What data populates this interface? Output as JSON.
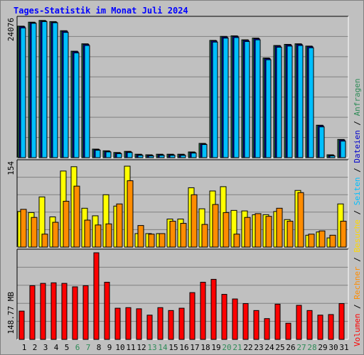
{
  "title": "Tages-Statistik im Monat Juli 2024",
  "colors": {
    "background": "#c0c0c0",
    "title": "#0000ff",
    "anfragen": "#2e8b57",
    "dateien": "#0000cd",
    "seiten": "#00bfff",
    "besuche": "#ffd700",
    "rechner": "#ff8c00",
    "volumen": "#ff0000",
    "weekend_label": "#2e8b57"
  },
  "right_legend": {
    "anfragen": "Anfragen",
    "dateien": "Dateien",
    "seiten": "Seiten",
    "besuche": "Besuche",
    "rechner": "Rechner",
    "volumen": "Volumen",
    "sep": " / "
  },
  "chart_data": [
    {
      "type": "bar",
      "ytick_label": "24076",
      "ymax": 24076,
      "categories": [
        "1",
        "2",
        "3",
        "4",
        "5",
        "6",
        "7",
        "8",
        "9",
        "10",
        "11",
        "12",
        "13",
        "14",
        "15",
        "16",
        "17",
        "18",
        "19",
        "20",
        "21",
        "22",
        "23",
        "24",
        "25",
        "26",
        "27",
        "28",
        "29",
        "30",
        "31"
      ],
      "weekend_days": [
        "6",
        "7",
        "13",
        "14",
        "20",
        "21",
        "27",
        "28"
      ],
      "series": [
        {
          "name": "Anfragen",
          "color": "#2e8b57",
          "values": [
            23100,
            23800,
            24100,
            23900,
            22300,
            18700,
            20000,
            1500,
            1200,
            900,
            1100,
            600,
            500,
            600,
            600,
            600,
            1000,
            2500,
            20600,
            21300,
            21400,
            20700,
            21000,
            17500,
            19700,
            19900,
            20000,
            19600,
            5700,
            500,
            3200
          ]
        },
        {
          "name": "Dateien",
          "color": "#0000cd",
          "values": [
            23000,
            23700,
            24000,
            23800,
            22200,
            18600,
            19900,
            1400,
            1100,
            800,
            1000,
            500,
            400,
            500,
            500,
            500,
            900,
            2400,
            20500,
            21200,
            21300,
            20600,
            20900,
            17400,
            19600,
            19800,
            19900,
            19500,
            5600,
            400,
            3100
          ]
        },
        {
          "name": "Seiten",
          "color": "#00bfff",
          "values": [
            22800,
            23600,
            23900,
            23700,
            22000,
            18400,
            19700,
            1300,
            1000,
            700,
            900,
            400,
            300,
            400,
            400,
            400,
            800,
            2300,
            20300,
            21000,
            21100,
            20400,
            20700,
            17200,
            19400,
            19600,
            19700,
            19300,
            5400,
            300,
            2900
          ]
        }
      ]
    },
    {
      "type": "bar",
      "ytick_label": "154",
      "ymax": 154,
      "categories": [
        "1",
        "2",
        "3",
        "4",
        "5",
        "6",
        "7",
        "8",
        "9",
        "10",
        "11",
        "12",
        "13",
        "14",
        "15",
        "16",
        "17",
        "18",
        "19",
        "20",
        "21",
        "22",
        "23",
        "24",
        "25",
        "26",
        "27",
        "28",
        "29",
        "30",
        "31"
      ],
      "series": [
        {
          "name": "Besuche",
          "color": "#ffff00",
          "values": [
            66,
            64,
            93,
            56,
            141,
            149,
            72,
            58,
            97,
            76,
            150,
            25,
            25,
            25,
            52,
            52,
            110,
            71,
            104,
            112,
            68,
            67,
            60,
            60,
            66,
            51,
            105,
            22,
            28,
            17,
            80
          ]
        },
        {
          "name": "Rechner",
          "color": "#ff8c00",
          "values": [
            70,
            55,
            24,
            46,
            85,
            113,
            50,
            41,
            43,
            80,
            123,
            40,
            24,
            25,
            48,
            44,
            97,
            42,
            79,
            64,
            24,
            55,
            62,
            57,
            72,
            48,
            101,
            24,
            30,
            22,
            48
          ]
        }
      ]
    },
    {
      "type": "bar",
      "ytick_label": "148.77 MB",
      "ymax": 148.77,
      "categories": [
        "1",
        "2",
        "3",
        "4",
        "5",
        "6",
        "7",
        "8",
        "9",
        "10",
        "11",
        "12",
        "13",
        "14",
        "15",
        "16",
        "17",
        "18",
        "19",
        "20",
        "21",
        "22",
        "23",
        "24",
        "25",
        "26",
        "27",
        "28",
        "29",
        "30",
        "31"
      ],
      "series": [
        {
          "name": "Volumen",
          "color": "#ff0000",
          "values": [
            49,
            93,
            97,
            98,
            97,
            91,
            93,
            150,
            99,
            54,
            55,
            53,
            42,
            55,
            50,
            54,
            81,
            99,
            104,
            78,
            70,
            62,
            50,
            36,
            61,
            28,
            59,
            50,
            42,
            43,
            62
          ]
        }
      ]
    }
  ]
}
